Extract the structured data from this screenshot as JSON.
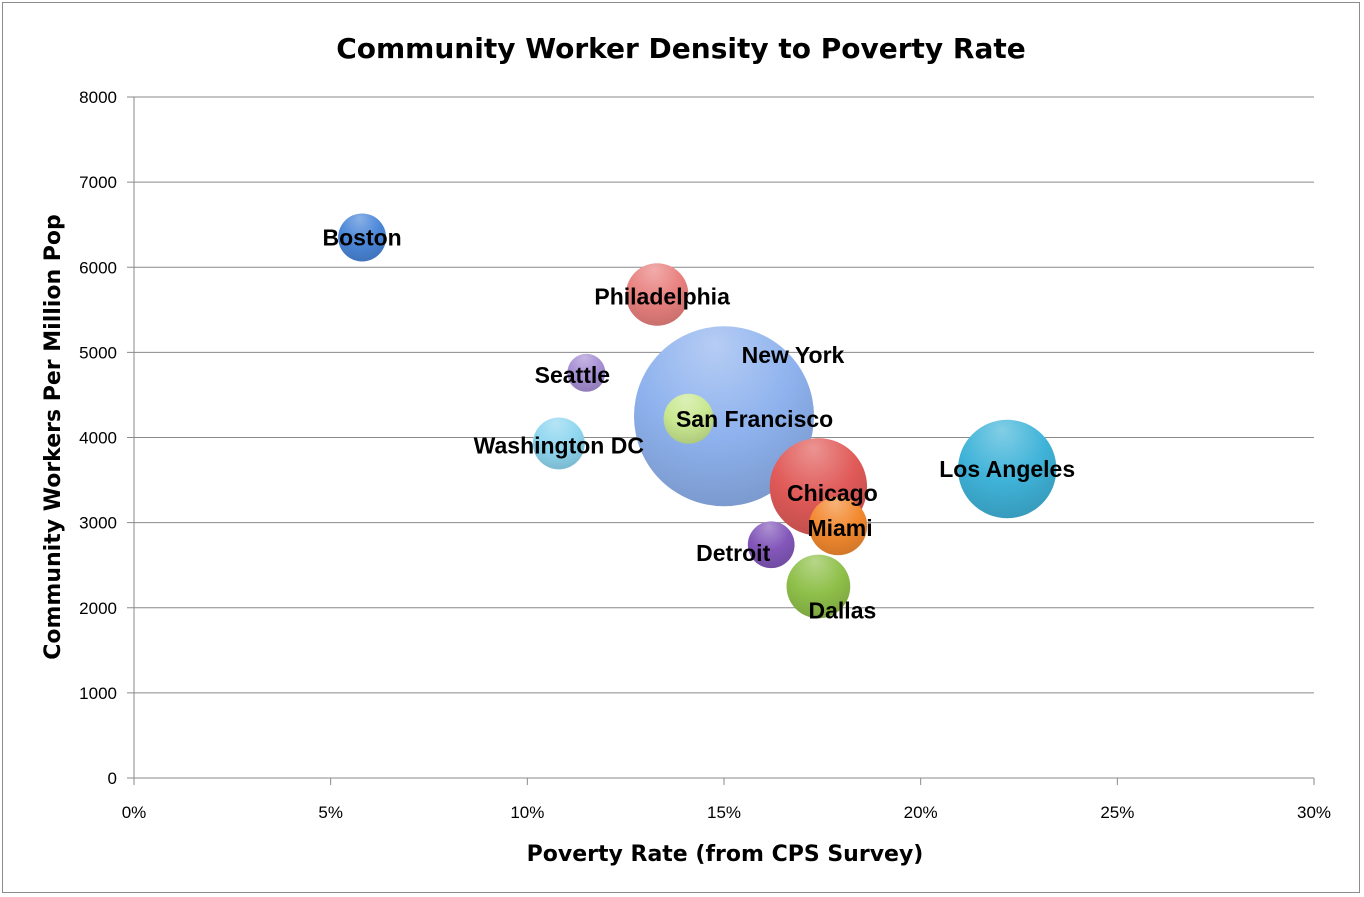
{
  "chart_data": {
    "type": "bubble",
    "title": "Community Worker Density to Poverty Rate",
    "xlabel": "Poverty Rate (from CPS Survey)",
    "ylabel": "Community Workers Per Million Pop",
    "xlim": [
      0,
      0.3
    ],
    "ylim": [
      0,
      8000
    ],
    "x_ticks": [
      0,
      0.05,
      0.1,
      0.15,
      0.2,
      0.25,
      0.3
    ],
    "x_tick_labels": [
      "0%",
      "5%",
      "10%",
      "15%",
      "20%",
      "25%",
      "30%"
    ],
    "y_ticks": [
      0,
      1000,
      2000,
      3000,
      4000,
      5000,
      6000,
      7000,
      8000
    ],
    "y_tick_labels": [
      "0",
      "1000",
      "2000",
      "3000",
      "4000",
      "5000",
      "6000",
      "7000",
      "8000"
    ],
    "grid": "horizontal",
    "legend": "none",
    "series": [
      {
        "name": "Boston",
        "x": 0.058,
        "y": 6350,
        "size": 0.59,
        "color": "#4a86d8"
      },
      {
        "name": "Philadelphia",
        "x": 0.133,
        "y": 5680,
        "size": 1.0,
        "color": "#e8807e"
      },
      {
        "name": "Seattle",
        "x": 0.115,
        "y": 4760,
        "size": 0.37,
        "color": "#a78fd4"
      },
      {
        "name": "New York",
        "x": 0.15,
        "y": 4250,
        "size": 8.3,
        "color": "#8eb2ee"
      },
      {
        "name": "Washington DC",
        "x": 0.108,
        "y": 3930,
        "size": 0.69,
        "color": "#8ed6f0"
      },
      {
        "name": "Dallas",
        "x": 0.174,
        "y": 2250,
        "size": 1.04,
        "color": "#8fc04a"
      },
      {
        "name": "Chicago",
        "x": 0.174,
        "y": 3420,
        "size": 2.43,
        "color": "#e05a58"
      },
      {
        "name": "Detroit",
        "x": 0.162,
        "y": 2740,
        "size": 0.56,
        "color": "#8357ba"
      },
      {
        "name": "Miami",
        "x": 0.179,
        "y": 2960,
        "size": 0.87,
        "color": "#f2892f"
      },
      {
        "name": "San Francisco",
        "x": 0.141,
        "y": 4220,
        "size": 0.64,
        "color": "#c9e890"
      },
      {
        "name": "Los Angeles",
        "x": 0.222,
        "y": 3630,
        "size": 2.48,
        "color": "#3fb3d8"
      }
    ]
  }
}
